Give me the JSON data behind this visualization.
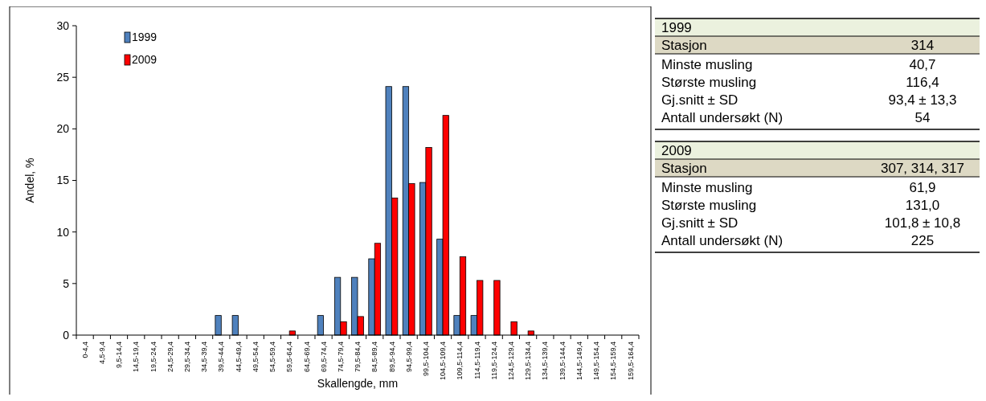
{
  "chart_data": [
    {
      "type": "bar",
      "xlabel": "Skallengde, mm",
      "ylabel": "Andel, %",
      "categories": [
        "0-4,4",
        "4,5-9,4",
        "9,5-14,4",
        "14,5-19,4",
        "19,5-24,4",
        "24,5-29,4",
        "29,5-34,4",
        "34,5-39,4",
        "39,5-44,4",
        "44,5-49,4",
        "49,5-54,4",
        "54,5-59,4",
        "59,5-64,4",
        "64,5-69,4",
        "69,5-74,4",
        "74,5-79,4",
        "79,5-84,4",
        "84,5-89,4",
        "89,5-94,4",
        "94,5-99,4",
        "99,5-104,4",
        "104,5-109,4",
        "109,5-114,4",
        "114,5-119,4",
        "119,5-124,4",
        "124,5-129,4",
        "129,5-134,4",
        "134,5-139,4",
        "139,5-144,4",
        "144,5-149,4",
        "149,5-154,4",
        "154,5-159,4",
        "159,5-164,4"
      ],
      "series": [
        {
          "name": "1999",
          "color": "#4f81bd",
          "values": [
            0,
            0,
            0,
            0,
            0,
            0,
            0,
            0,
            1.9,
            1.9,
            0,
            0,
            0,
            0,
            1.9,
            5.6,
            5.6,
            7.4,
            24.1,
            24.1,
            14.8,
            9.3,
            1.9,
            1.9,
            0,
            0,
            0,
            0,
            0,
            0,
            0,
            0,
            0
          ]
        },
        {
          "name": "2009",
          "color": "#ff0000",
          "values": [
            0,
            0,
            0,
            0,
            0,
            0,
            0,
            0,
            0,
            0,
            0,
            0,
            0.4,
            0,
            0,
            1.3,
            1.8,
            8.9,
            13.3,
            14.7,
            18.2,
            21.3,
            7.6,
            5.3,
            5.3,
            1.3,
            0.4,
            0,
            0,
            0,
            0,
            0,
            0
          ]
        }
      ],
      "ylim": [
        0,
        30
      ],
      "yticks": [
        0,
        5,
        10,
        15,
        20,
        25,
        30
      ],
      "grid": false,
      "legend": "top left"
    },
    {
      "type": "other",
      "title": "1999",
      "categories": [
        "Stasjon",
        "Minste musling",
        "Største musling",
        "Gj.snitt ± SD",
        "Antall undersøkt (N)"
      ],
      "value_labels": [
        "314",
        "40,7",
        "116,4",
        "93,4 ± 13,3",
        "54"
      ]
    },
    {
      "type": "other",
      "title": "2009",
      "categories": [
        "Stasjon",
        "Minste musling",
        "Største musling",
        "Gj.snitt ± SD",
        "Antall undersøkt (N)"
      ],
      "value_labels": [
        "307, 314, 317",
        "61,9",
        "131,0",
        "101,8 ± 10,8",
        "225"
      ]
    }
  ]
}
